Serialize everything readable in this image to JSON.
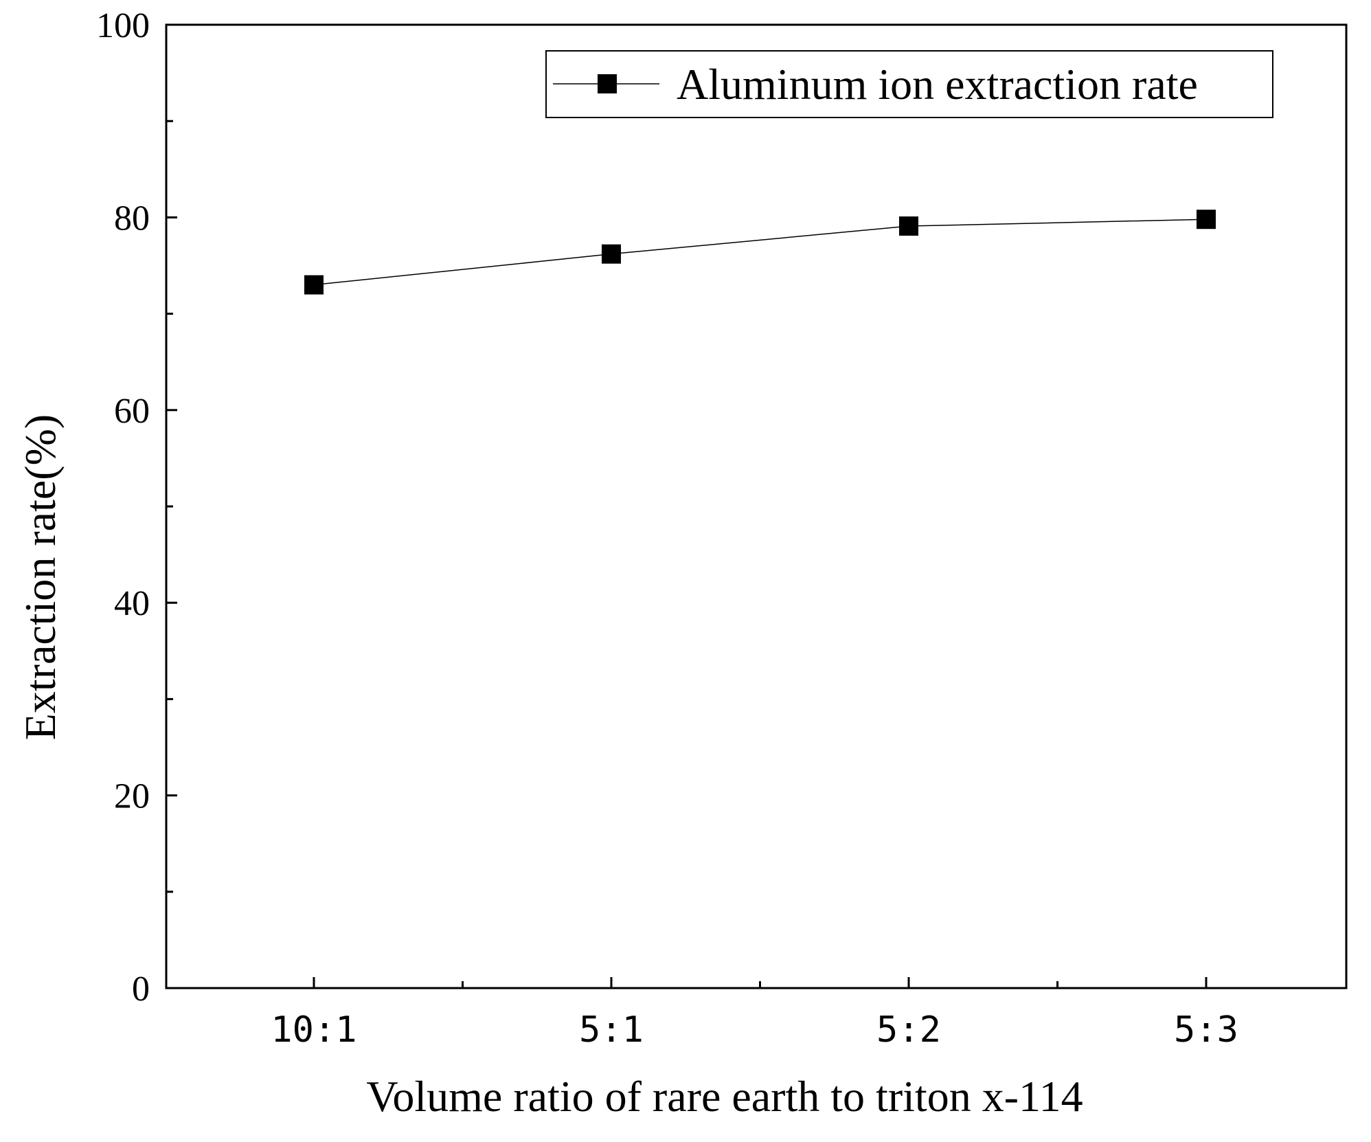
{
  "chart_data": {
    "type": "line",
    "categories": [
      "10:1",
      "5:1",
      "5:2",
      "5:3"
    ],
    "series": [
      {
        "name": "Aluminum ion extraction rate",
        "values": [
          73,
          76.2,
          79.1,
          79.8
        ],
        "marker": "square",
        "color": "#000000"
      }
    ],
    "xlabel": "Volume ratio of rare earth to triton x-114",
    "ylabel": "Extraction  rate(%)",
    "ylim": [
      0,
      100
    ],
    "yticks": [
      0,
      20,
      40,
      60,
      80,
      100
    ],
    "y_minor_step": 10,
    "grid": false,
    "legend_position": "top-right"
  }
}
